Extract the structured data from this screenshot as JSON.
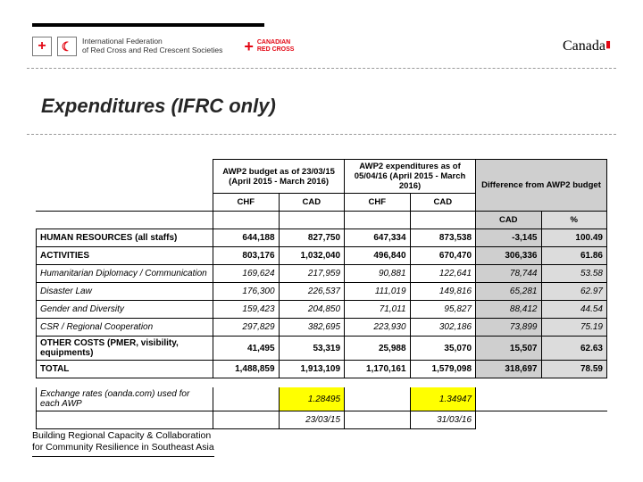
{
  "header": {
    "ifrc_text_line1": "International Federation",
    "ifrc_text_line2": "of Red Cross and Red Crescent Societies",
    "crc_line1": "CANADIAN",
    "crc_line2": "RED CROSS",
    "canada": "Canada"
  },
  "title": "Expenditures (IFRC only)",
  "table": {
    "hdr_budget": "AWP2 budget as of 23/03/15 (April 2015 - March 2016)",
    "hdr_expend": "AWP2 expenditures as of 05/04/16 (April 2015 - March 2016)",
    "hdr_diff": "Difference from AWP2 budget",
    "col_chf": "CHF",
    "col_cad": "CAD",
    "col_pct": "%",
    "rows": [
      {
        "label": "HUMAN RESOURCES (all staffs)",
        "b": true,
        "chf1": "644,188",
        "cad1": "827,750",
        "chf2": "647,334",
        "cad2": "873,538",
        "diff": "-3,145",
        "pct": "100.49"
      },
      {
        "label": "ACTIVITIES",
        "b": true,
        "chf1": "803,176",
        "cad1": "1,032,040",
        "chf2": "496,840",
        "cad2": "670,470",
        "diff": "306,336",
        "pct": "61.86"
      },
      {
        "label": "Humanitarian Diplomacy / Communication",
        "i": true,
        "chf1": "169,624",
        "cad1": "217,959",
        "chf2": "90,881",
        "cad2": "122,641",
        "diff": "78,744",
        "pct": "53.58"
      },
      {
        "label": "Disaster Law",
        "i": true,
        "chf1": "176,300",
        "cad1": "226,537",
        "chf2": "111,019",
        "cad2": "149,816",
        "diff": "65,281",
        "pct": "62.97"
      },
      {
        "label": "Gender and Diversity",
        "i": true,
        "chf1": "159,423",
        "cad1": "204,850",
        "chf2": "71,011",
        "cad2": "95,827",
        "diff": "88,412",
        "pct": "44.54"
      },
      {
        "label": "CSR / Regional Cooperation",
        "i": true,
        "chf1": "297,829",
        "cad1": "382,695",
        "chf2": "223,930",
        "cad2": "302,186",
        "diff": "73,899",
        "pct": "75.19"
      },
      {
        "label": "OTHER COSTS (PMER, visibility, equipments)",
        "b": true,
        "chf1": "41,495",
        "cad1": "53,319",
        "chf2": "25,988",
        "cad2": "35,070",
        "diff": "15,507",
        "pct": "62.63"
      },
      {
        "label": "TOTAL",
        "b": true,
        "chf1": "1,488,859",
        "cad1": "1,913,109",
        "chf2": "1,170,161",
        "cad2": "1,579,098",
        "diff": "318,697",
        "pct": "78.59"
      }
    ],
    "exch_label": "Exchange rates (oanda.com) used for each AWP",
    "exch_rate1": "1.28495",
    "exch_rate2": "1.34947",
    "exch_date1": "23/03/15",
    "exch_date2": "31/03/16"
  },
  "footer": {
    "line1": "Building Regional Capacity & Collaboration",
    "line2": "for Community Resilience in Southeast Asia"
  },
  "colors": {
    "red": "#e30613",
    "shade": "#cfcfcf",
    "highlight": "#ffff00"
  }
}
